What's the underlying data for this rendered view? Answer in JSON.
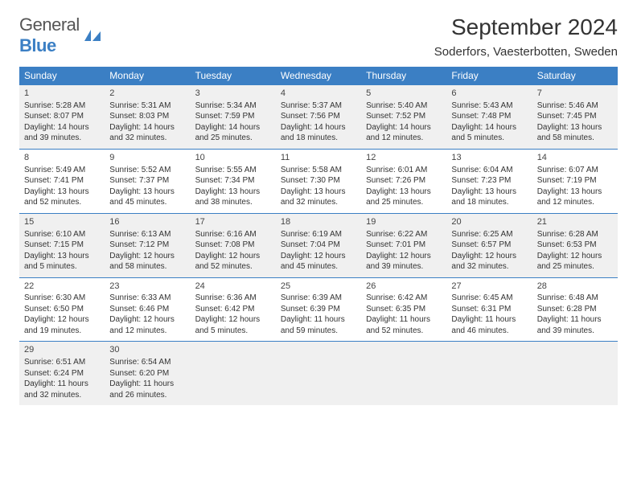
{
  "logo": {
    "general": "General",
    "blue": "Blue"
  },
  "title": "September 2024",
  "location": "Soderfors, Vaesterbotten, Sweden",
  "colors": {
    "header_bg": "#3b7fc4",
    "header_fg": "#ffffff",
    "shaded_bg": "#f0f0f0",
    "text": "#333333"
  },
  "day_headers": [
    "Sunday",
    "Monday",
    "Tuesday",
    "Wednesday",
    "Thursday",
    "Friday",
    "Saturday"
  ],
  "weeks": [
    {
      "shaded": true,
      "days": [
        {
          "n": "1",
          "sunrise": "Sunrise: 5:28 AM",
          "sunset": "Sunset: 8:07 PM",
          "daylight": "Daylight: 14 hours and 39 minutes."
        },
        {
          "n": "2",
          "sunrise": "Sunrise: 5:31 AM",
          "sunset": "Sunset: 8:03 PM",
          "daylight": "Daylight: 14 hours and 32 minutes."
        },
        {
          "n": "3",
          "sunrise": "Sunrise: 5:34 AM",
          "sunset": "Sunset: 7:59 PM",
          "daylight": "Daylight: 14 hours and 25 minutes."
        },
        {
          "n": "4",
          "sunrise": "Sunrise: 5:37 AM",
          "sunset": "Sunset: 7:56 PM",
          "daylight": "Daylight: 14 hours and 18 minutes."
        },
        {
          "n": "5",
          "sunrise": "Sunrise: 5:40 AM",
          "sunset": "Sunset: 7:52 PM",
          "daylight": "Daylight: 14 hours and 12 minutes."
        },
        {
          "n": "6",
          "sunrise": "Sunrise: 5:43 AM",
          "sunset": "Sunset: 7:48 PM",
          "daylight": "Daylight: 14 hours and 5 minutes."
        },
        {
          "n": "7",
          "sunrise": "Sunrise: 5:46 AM",
          "sunset": "Sunset: 7:45 PM",
          "daylight": "Daylight: 13 hours and 58 minutes."
        }
      ]
    },
    {
      "shaded": false,
      "days": [
        {
          "n": "8",
          "sunrise": "Sunrise: 5:49 AM",
          "sunset": "Sunset: 7:41 PM",
          "daylight": "Daylight: 13 hours and 52 minutes."
        },
        {
          "n": "9",
          "sunrise": "Sunrise: 5:52 AM",
          "sunset": "Sunset: 7:37 PM",
          "daylight": "Daylight: 13 hours and 45 minutes."
        },
        {
          "n": "10",
          "sunrise": "Sunrise: 5:55 AM",
          "sunset": "Sunset: 7:34 PM",
          "daylight": "Daylight: 13 hours and 38 minutes."
        },
        {
          "n": "11",
          "sunrise": "Sunrise: 5:58 AM",
          "sunset": "Sunset: 7:30 PM",
          "daylight": "Daylight: 13 hours and 32 minutes."
        },
        {
          "n": "12",
          "sunrise": "Sunrise: 6:01 AM",
          "sunset": "Sunset: 7:26 PM",
          "daylight": "Daylight: 13 hours and 25 minutes."
        },
        {
          "n": "13",
          "sunrise": "Sunrise: 6:04 AM",
          "sunset": "Sunset: 7:23 PM",
          "daylight": "Daylight: 13 hours and 18 minutes."
        },
        {
          "n": "14",
          "sunrise": "Sunrise: 6:07 AM",
          "sunset": "Sunset: 7:19 PM",
          "daylight": "Daylight: 13 hours and 12 minutes."
        }
      ]
    },
    {
      "shaded": true,
      "days": [
        {
          "n": "15",
          "sunrise": "Sunrise: 6:10 AM",
          "sunset": "Sunset: 7:15 PM",
          "daylight": "Daylight: 13 hours and 5 minutes."
        },
        {
          "n": "16",
          "sunrise": "Sunrise: 6:13 AM",
          "sunset": "Sunset: 7:12 PM",
          "daylight": "Daylight: 12 hours and 58 minutes."
        },
        {
          "n": "17",
          "sunrise": "Sunrise: 6:16 AM",
          "sunset": "Sunset: 7:08 PM",
          "daylight": "Daylight: 12 hours and 52 minutes."
        },
        {
          "n": "18",
          "sunrise": "Sunrise: 6:19 AM",
          "sunset": "Sunset: 7:04 PM",
          "daylight": "Daylight: 12 hours and 45 minutes."
        },
        {
          "n": "19",
          "sunrise": "Sunrise: 6:22 AM",
          "sunset": "Sunset: 7:01 PM",
          "daylight": "Daylight: 12 hours and 39 minutes."
        },
        {
          "n": "20",
          "sunrise": "Sunrise: 6:25 AM",
          "sunset": "Sunset: 6:57 PM",
          "daylight": "Daylight: 12 hours and 32 minutes."
        },
        {
          "n": "21",
          "sunrise": "Sunrise: 6:28 AM",
          "sunset": "Sunset: 6:53 PM",
          "daylight": "Daylight: 12 hours and 25 minutes."
        }
      ]
    },
    {
      "shaded": false,
      "days": [
        {
          "n": "22",
          "sunrise": "Sunrise: 6:30 AM",
          "sunset": "Sunset: 6:50 PM",
          "daylight": "Daylight: 12 hours and 19 minutes."
        },
        {
          "n": "23",
          "sunrise": "Sunrise: 6:33 AM",
          "sunset": "Sunset: 6:46 PM",
          "daylight": "Daylight: 12 hours and 12 minutes."
        },
        {
          "n": "24",
          "sunrise": "Sunrise: 6:36 AM",
          "sunset": "Sunset: 6:42 PM",
          "daylight": "Daylight: 12 hours and 5 minutes."
        },
        {
          "n": "25",
          "sunrise": "Sunrise: 6:39 AM",
          "sunset": "Sunset: 6:39 PM",
          "daylight": "Daylight: 11 hours and 59 minutes."
        },
        {
          "n": "26",
          "sunrise": "Sunrise: 6:42 AM",
          "sunset": "Sunset: 6:35 PM",
          "daylight": "Daylight: 11 hours and 52 minutes."
        },
        {
          "n": "27",
          "sunrise": "Sunrise: 6:45 AM",
          "sunset": "Sunset: 6:31 PM",
          "daylight": "Daylight: 11 hours and 46 minutes."
        },
        {
          "n": "28",
          "sunrise": "Sunrise: 6:48 AM",
          "sunset": "Sunset: 6:28 PM",
          "daylight": "Daylight: 11 hours and 39 minutes."
        }
      ]
    },
    {
      "shaded": true,
      "days": [
        {
          "n": "29",
          "sunrise": "Sunrise: 6:51 AM",
          "sunset": "Sunset: 6:24 PM",
          "daylight": "Daylight: 11 hours and 32 minutes."
        },
        {
          "n": "30",
          "sunrise": "Sunrise: 6:54 AM",
          "sunset": "Sunset: 6:20 PM",
          "daylight": "Daylight: 11 hours and 26 minutes."
        },
        null,
        null,
        null,
        null,
        null
      ]
    }
  ]
}
